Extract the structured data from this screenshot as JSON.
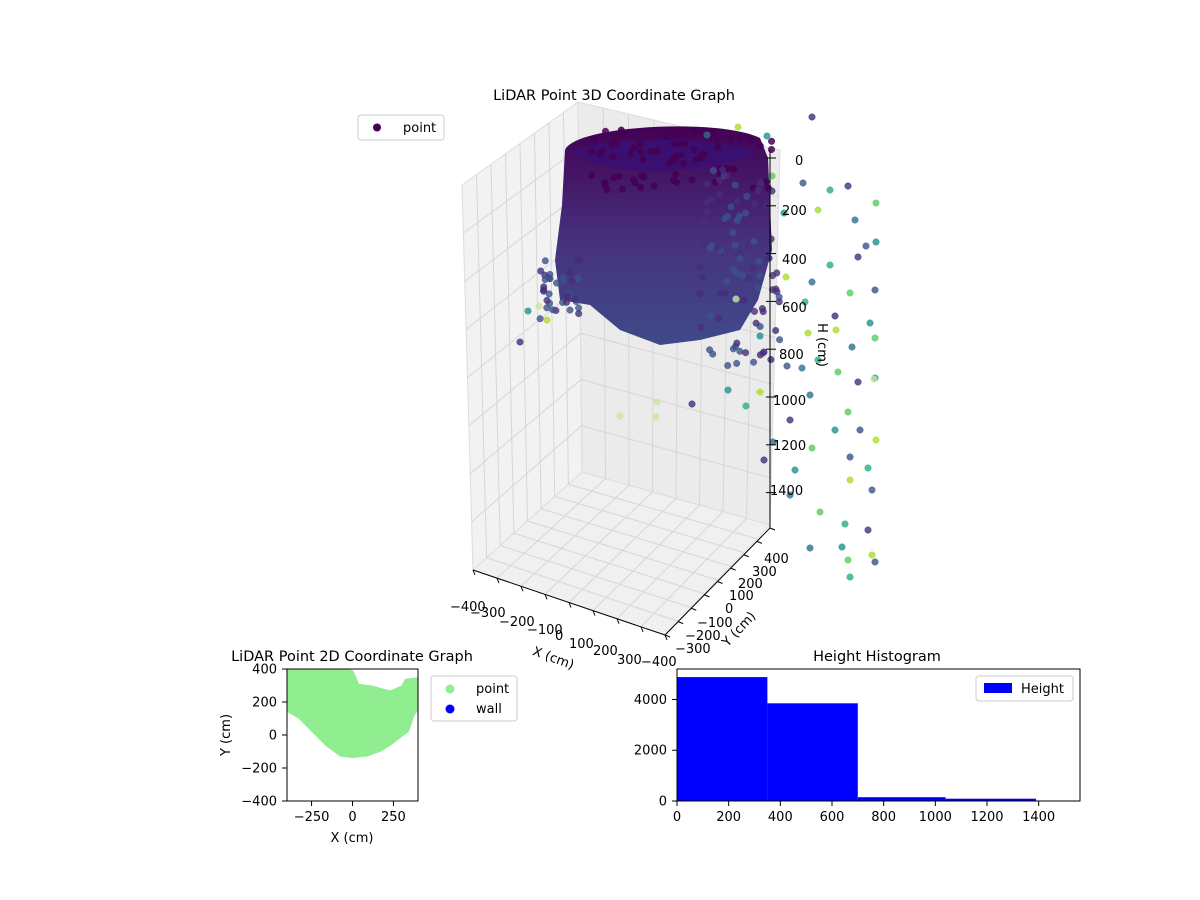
{
  "chart_data": [
    {
      "id": "lidar-3d",
      "type": "scatter3d",
      "title": "LiDAR Point 3D Coordinate Graph",
      "xlabel": "X (cm)",
      "ylabel": "Y (cm)",
      "zlabel": "H (cm)",
      "x_ticks": [
        "−400",
        "−300",
        "−200",
        "−100",
        "0",
        "100",
        "200",
        "300"
      ],
      "y_ticks": [
        "400",
        "300",
        "200",
        "100",
        "0",
        "−100",
        "−200",
        "−300",
        "−400"
      ],
      "z_ticks": [
        "0",
        "200",
        "400",
        "600",
        "800",
        "1000",
        "1200",
        "1400"
      ],
      "xlim": [
        -400,
        400
      ],
      "ylim": [
        -400,
        400
      ],
      "zlim": [
        0,
        1500
      ],
      "z_inverted": true,
      "colormap": "viridis",
      "legend": {
        "placement": "top-left",
        "entries": [
          {
            "label": "point",
            "color": "#440154"
          }
        ]
      },
      "note_series": "dense cylindrical wall of points (height ~0-650 cm) plus sparse outliers down to ~1500 cm"
    },
    {
      "id": "lidar-2d",
      "type": "scatter",
      "title": "LiDAR Point 2D Coordinate Graph",
      "xlabel": "X (cm)",
      "ylabel": "Y (cm)",
      "xlim": [
        -400,
        400
      ],
      "ylim": [
        -400,
        400
      ],
      "x_ticks": [
        "−250",
        "0",
        "250"
      ],
      "x_tick_values": [
        -250,
        0,
        250
      ],
      "y_ticks": [
        "400",
        "200",
        "0",
        "−200",
        "−400"
      ],
      "y_tick_values": [
        400,
        200,
        0,
        -200,
        -400
      ],
      "region_outline": [
        [
          -400,
          400
        ],
        [
          -25,
          400
        ],
        [
          5,
          390
        ],
        [
          40,
          310
        ],
        [
          120,
          300
        ],
        [
          230,
          270
        ],
        [
          300,
          300
        ],
        [
          320,
          340
        ],
        [
          400,
          350
        ],
        [
          400,
          150
        ],
        [
          375,
          110
        ],
        [
          345,
          20
        ],
        [
          290,
          -20
        ],
        [
          240,
          -60
        ],
        [
          175,
          -100
        ],
        [
          90,
          -130
        ],
        [
          0,
          -140
        ],
        [
          -75,
          -130
        ],
        [
          -160,
          -70
        ],
        [
          -240,
          10
        ],
        [
          -330,
          100
        ],
        [
          -400,
          140
        ]
      ],
      "series": [
        {
          "name": "point",
          "color": "#90ee90"
        },
        {
          "name": "wall",
          "color": "#0000ff"
        }
      ],
      "legend": {
        "placement": "outside-right",
        "entries": [
          "point",
          "wall"
        ]
      }
    },
    {
      "id": "height-hist",
      "type": "bar",
      "title": "Height Histogram",
      "xlabel": "",
      "ylabel": "",
      "bin_edges": [
        0,
        350,
        700,
        1040,
        1390,
        1560
      ],
      "counts": [
        4880,
        3850,
        150,
        90,
        20
      ],
      "xlim": [
        0,
        1560
      ],
      "ylim": [
        0,
        5200
      ],
      "x_ticks": [
        "0",
        "200",
        "400",
        "600",
        "800",
        "1000",
        "1200",
        "1400"
      ],
      "x_tick_values": [
        0,
        200,
        400,
        600,
        800,
        1000,
        1200,
        1400
      ],
      "y_ticks": [
        "0",
        "2000",
        "4000"
      ],
      "y_tick_values": [
        0,
        2000,
        4000
      ],
      "color": "#0000ff",
      "series": [
        {
          "name": "Height",
          "color": "#0000ff"
        }
      ],
      "legend": {
        "placement": "top-right",
        "entries": [
          "Height"
        ]
      }
    }
  ]
}
